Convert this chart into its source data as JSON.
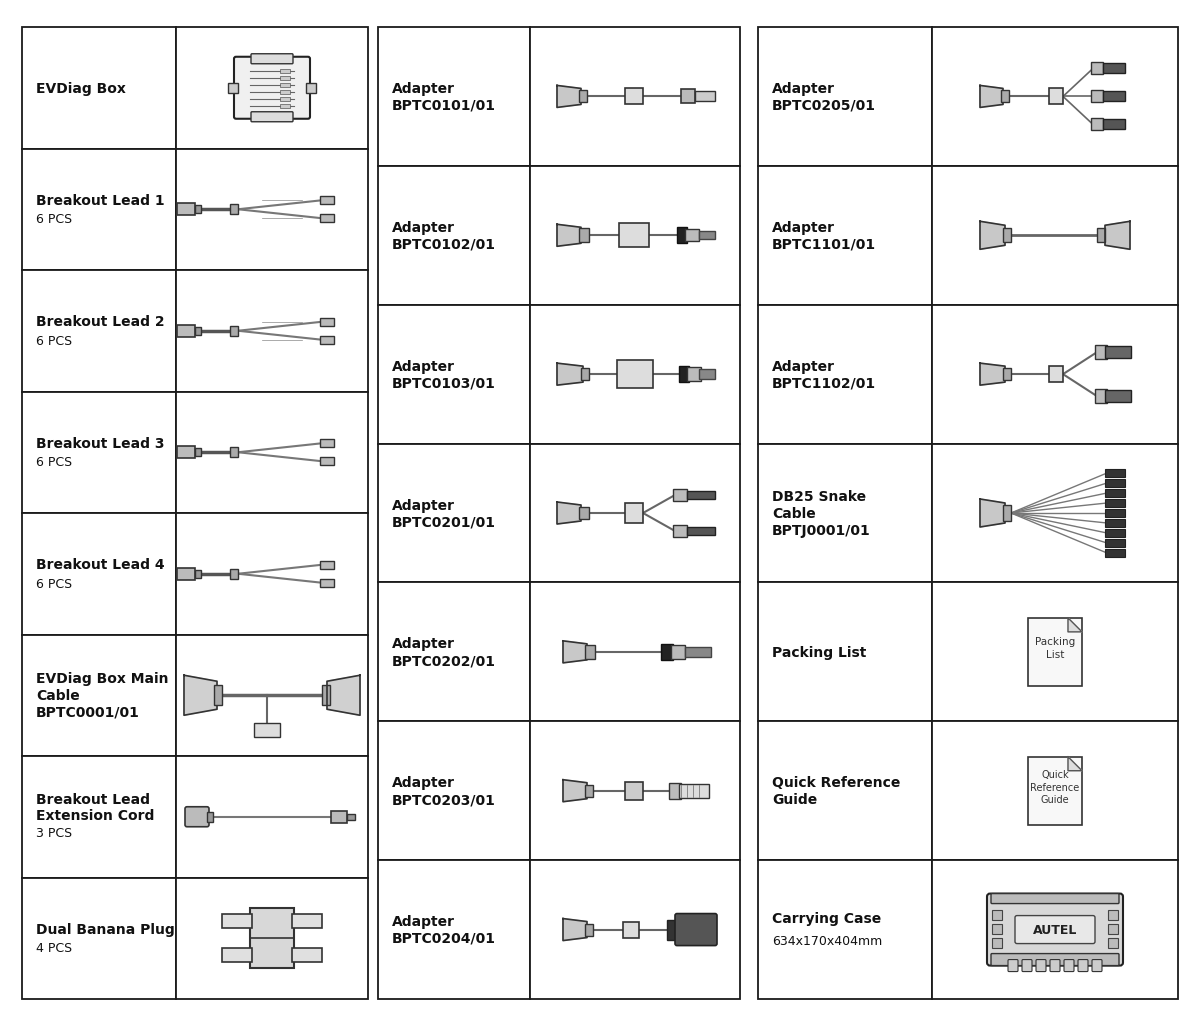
{
  "bg_color": "#ffffff",
  "border_color": "#1a1a1a",
  "text_color": "#111111",
  "col1_items": [
    {
      "name": "EVDiag Box",
      "sub": ""
    },
    {
      "name": "Breakout Lead 1",
      "sub": "6 PCS"
    },
    {
      "name": "Breakout Lead 2",
      "sub": "6 PCS"
    },
    {
      "name": "Breakout Lead 3",
      "sub": "6 PCS"
    },
    {
      "name": "Breakout Lead 4",
      "sub": "6 PCS"
    },
    {
      "name": "EVDiag Box Main\nCable\nBPTC0001/01",
      "sub": ""
    },
    {
      "name": "Breakout Lead\nExtension Cord",
      "sub": "3 PCS"
    },
    {
      "name": "Dual Banana Plug",
      "sub": "4 PCS"
    }
  ],
  "col2_items": [
    {
      "name": "Adapter\nBPTC0101/01",
      "sub": ""
    },
    {
      "name": "Adapter\nBPTC0102/01",
      "sub": ""
    },
    {
      "name": "Adapter\nBPTC0103/01",
      "sub": ""
    },
    {
      "name": "Adapter\nBPTC0201/01",
      "sub": ""
    },
    {
      "name": "Adapter\nBPTC0202/01",
      "sub": ""
    },
    {
      "name": "Adapter\nBPTC0203/01",
      "sub": ""
    },
    {
      "name": "Adapter\nBPTC0204/01",
      "sub": ""
    }
  ],
  "col3_items": [
    {
      "name": "Adapter\nBPTC0205/01",
      "sub": ""
    },
    {
      "name": "Adapter\nBPTC1101/01",
      "sub": ""
    },
    {
      "name": "Adapter\nBPTC1102/01",
      "sub": ""
    },
    {
      "name": "DB25 Snake\nCable\nBPTJ0001/01",
      "sub": ""
    },
    {
      "name": "Packing List",
      "sub": ""
    },
    {
      "name": "Quick Reference\nGuide",
      "sub": ""
    },
    {
      "name": "Carrying Case",
      "sub": "634x170x404mm"
    }
  ]
}
